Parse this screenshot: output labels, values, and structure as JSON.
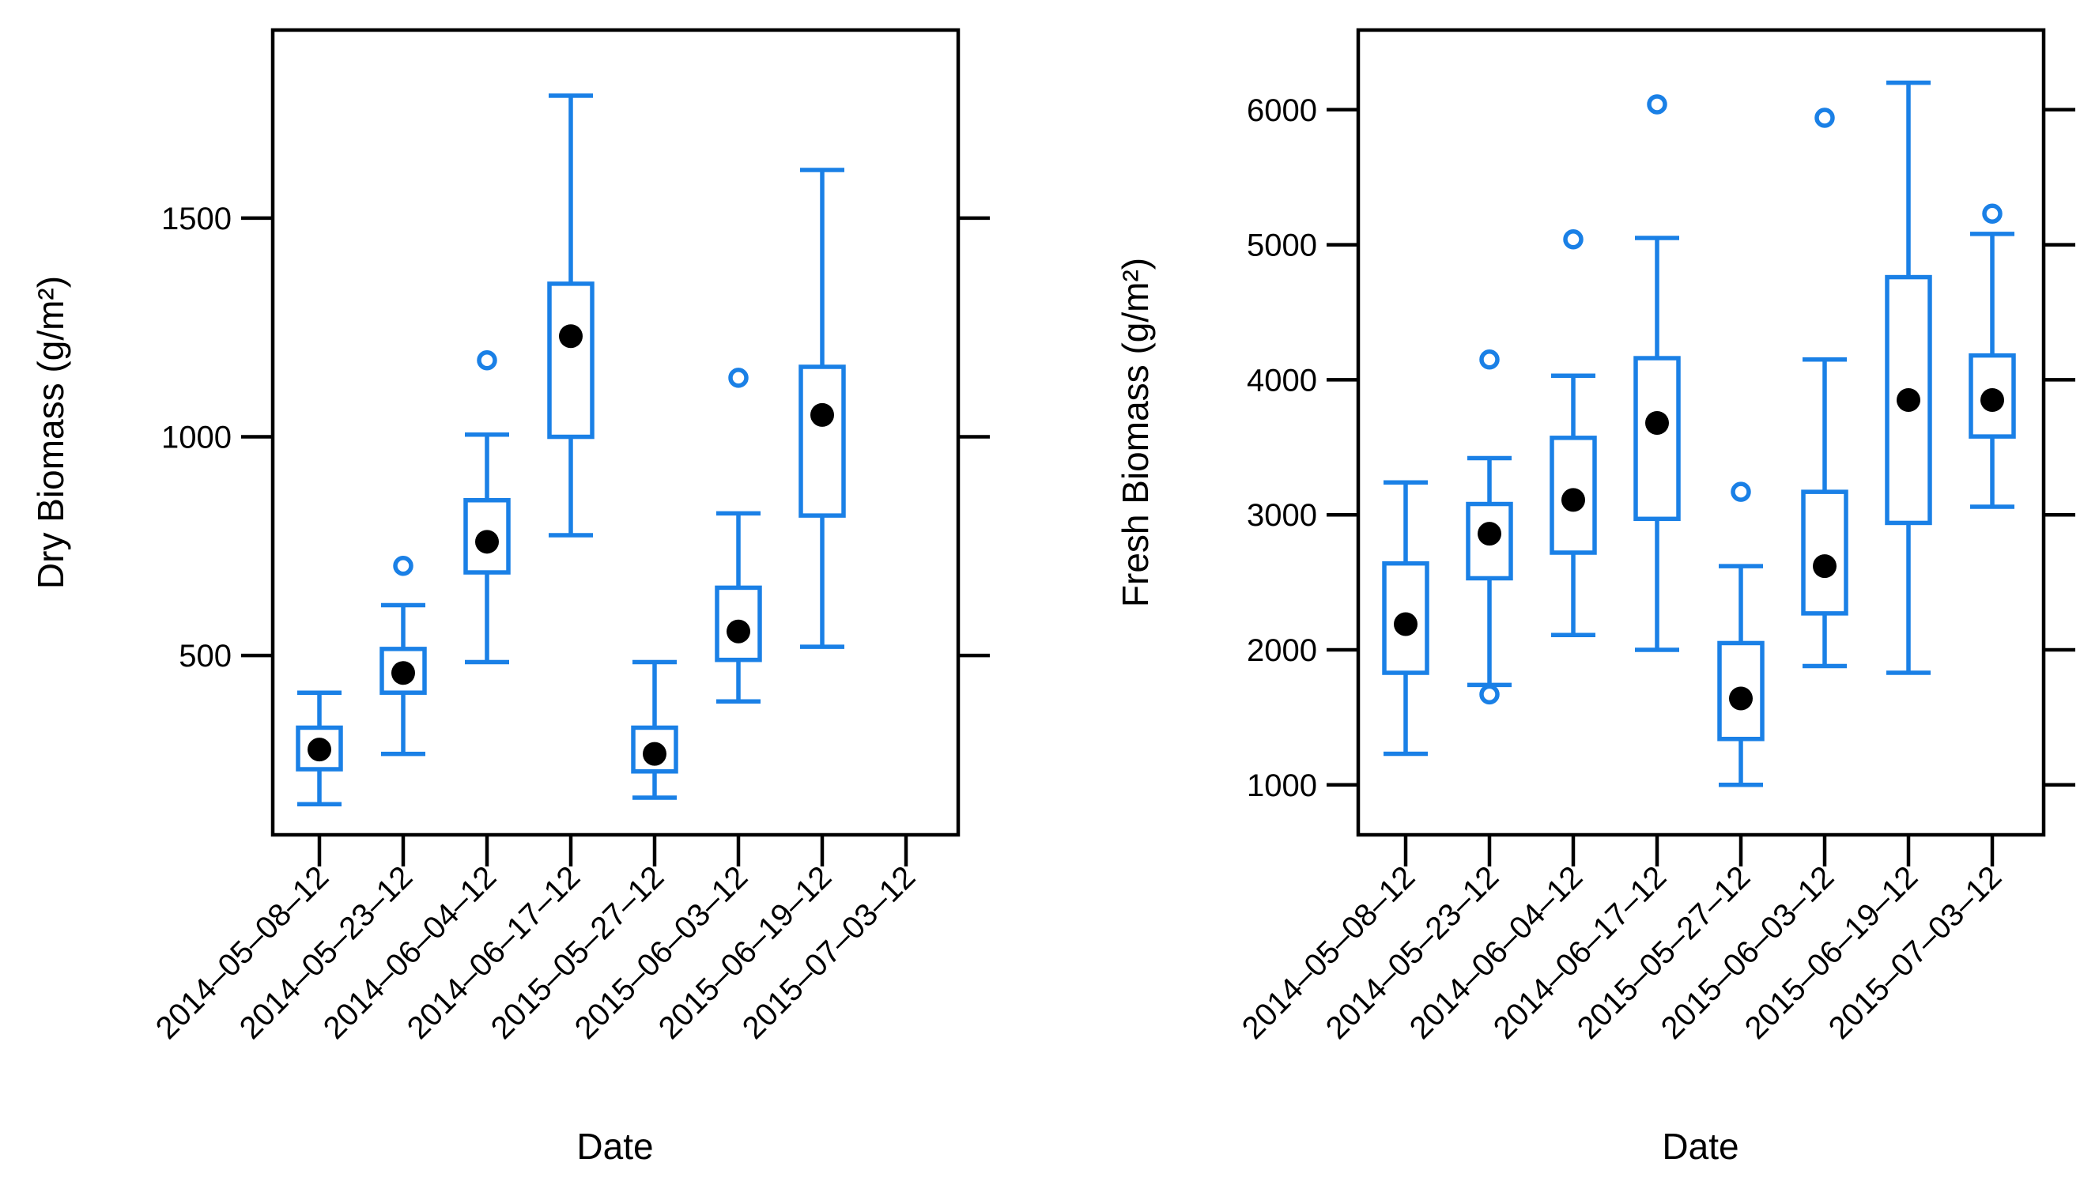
{
  "colors": {
    "box": "#1a80e6",
    "median": "#000000",
    "frame": "#000000",
    "background": "#ffffff"
  },
  "chart_data": [
    {
      "type": "box",
      "title": "",
      "xlabel": "Date",
      "ylabel": "Dry Biomass (g/m²)",
      "ylim": [
        90,
        1930
      ],
      "yticks": [
        500,
        1000,
        1500
      ],
      "ytick_labels": [
        "500",
        "1000",
        "1500"
      ],
      "y_axis_side": "left",
      "categories": [
        "2014–05–08–12",
        "2014–05–23–12",
        "2014–06–04–12",
        "2014–06–17–12",
        "2015–05–27–12",
        "2015–06–03–12",
        "2015–06–19–12",
        "2015–07–03–12"
      ],
      "boxes": [
        {
          "whisker_low": 160,
          "q1": 240,
          "median": 285,
          "q3": 335,
          "whisker_high": 415,
          "outliers": []
        },
        {
          "whisker_low": 275,
          "q1": 415,
          "median": 460,
          "q3": 515,
          "whisker_high": 615,
          "outliers": [
            705
          ]
        },
        {
          "whisker_low": 485,
          "q1": 690,
          "median": 760,
          "q3": 855,
          "whisker_high": 1005,
          "outliers": [
            1175
          ]
        },
        {
          "whisker_low": 775,
          "q1": 1000,
          "median": 1230,
          "q3": 1350,
          "whisker_high": 1780,
          "outliers": []
        },
        {
          "whisker_low": 175,
          "q1": 235,
          "median": 275,
          "q3": 335,
          "whisker_high": 485,
          "outliers": []
        },
        {
          "whisker_low": 395,
          "q1": 490,
          "median": 555,
          "q3": 655,
          "whisker_high": 825,
          "outliers": [
            1135
          ]
        },
        {
          "whisker_low": 520,
          "q1": 820,
          "median": 1050,
          "q3": 1160,
          "whisker_high": 1610,
          "outliers": []
        },
        null
      ]
    },
    {
      "type": "box",
      "title": "",
      "xlabel": "Date",
      "ylabel": "Fresh Biomass (g/m²)",
      "ylim": [
        630,
        6590
      ],
      "yticks": [
        1000,
        2000,
        3000,
        4000,
        5000,
        6000
      ],
      "ytick_labels": [
        "1000",
        "2000",
        "3000",
        "4000",
        "5000",
        "6000"
      ],
      "y_axis_side": "left",
      "categories": [
        "2014–05–08–12",
        "2014–05–23–12",
        "2014–06–04–12",
        "2014–06–17–12",
        "2015–05–27–12",
        "2015–06–03–12",
        "2015–06–19–12",
        "2015–07–03–12"
      ],
      "boxes": [
        {
          "whisker_low": 1230,
          "q1": 1830,
          "median": 2190,
          "q3": 2640,
          "whisker_high": 3240,
          "outliers": []
        },
        {
          "whisker_low": 1740,
          "q1": 2530,
          "median": 2860,
          "q3": 3080,
          "whisker_high": 3420,
          "outliers": [
            4150,
            1670
          ]
        },
        {
          "whisker_low": 2110,
          "q1": 2720,
          "median": 3110,
          "q3": 3570,
          "whisker_high": 4030,
          "outliers": [
            5040
          ]
        },
        {
          "whisker_low": 2000,
          "q1": 2970,
          "median": 3680,
          "q3": 4160,
          "whisker_high": 5050,
          "outliers": [
            6040
          ]
        },
        {
          "whisker_low": 1000,
          "q1": 1340,
          "median": 1640,
          "q3": 2050,
          "whisker_high": 2620,
          "outliers": [
            3170
          ]
        },
        {
          "whisker_low": 1880,
          "q1": 2270,
          "median": 2620,
          "q3": 3170,
          "whisker_high": 4150,
          "outliers": [
            5940
          ]
        },
        {
          "whisker_low": 1830,
          "q1": 2940,
          "median": 3850,
          "q3": 4760,
          "whisker_high": 6200,
          "outliers": []
        },
        {
          "whisker_low": 3060,
          "q1": 3580,
          "median": 3850,
          "q3": 4180,
          "whisker_high": 5080,
          "outliers": [
            5230
          ]
        }
      ]
    }
  ]
}
